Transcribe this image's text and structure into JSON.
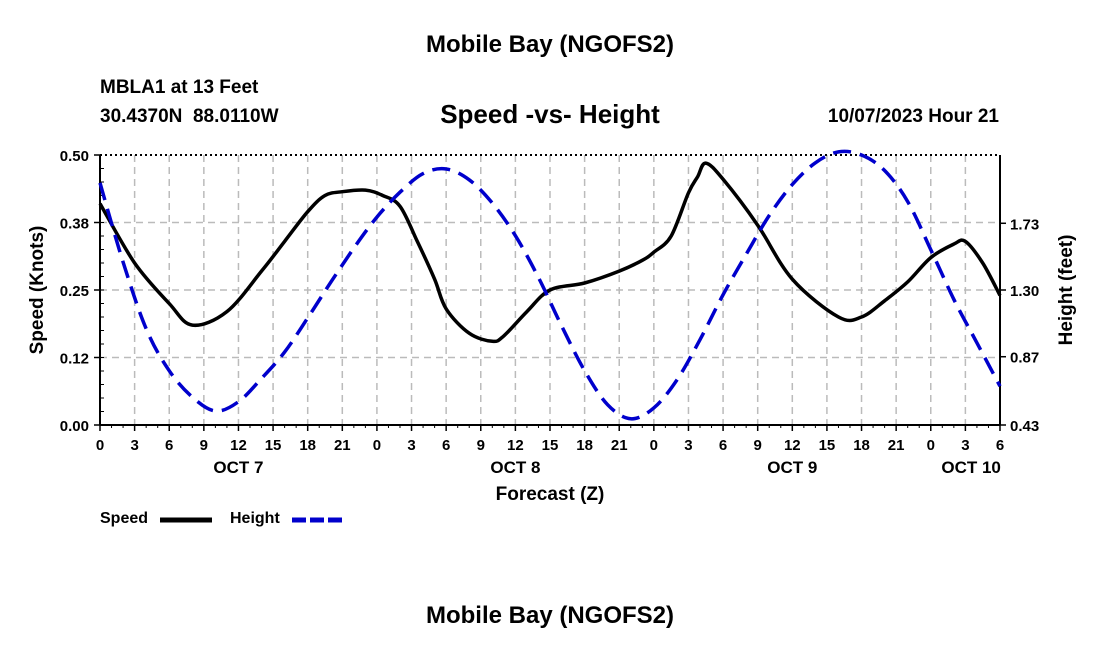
{
  "page_title": "Mobile Bay (NGOFS2)",
  "footer_title": "Mobile Bay (NGOFS2)",
  "station": {
    "name_line": "MBLA1 at 13 Feet",
    "coords_line": "30.4370N  88.0110W"
  },
  "timestamp": "10/07/2023 Hour 21",
  "chart_data": {
    "type": "line",
    "title": "Speed -vs- Height",
    "xlabel": "Forecast (Z)",
    "ylabel": "Speed (Knots)",
    "y2label": "Height (feet)",
    "x_range_hours": [
      0,
      78
    ],
    "x_ticks": [
      {
        "hour": 0,
        "label": "0"
      },
      {
        "hour": 3,
        "label": "3"
      },
      {
        "hour": 6,
        "label": "6"
      },
      {
        "hour": 9,
        "label": "9"
      },
      {
        "hour": 12,
        "label": "12"
      },
      {
        "hour": 15,
        "label": "15"
      },
      {
        "hour": 18,
        "label": "18"
      },
      {
        "hour": 21,
        "label": "21"
      },
      {
        "hour": 24,
        "label": "0"
      },
      {
        "hour": 27,
        "label": "3"
      },
      {
        "hour": 30,
        "label": "6"
      },
      {
        "hour": 33,
        "label": "9"
      },
      {
        "hour": 36,
        "label": "12"
      },
      {
        "hour": 39,
        "label": "15"
      },
      {
        "hour": 42,
        "label": "18"
      },
      {
        "hour": 45,
        "label": "21"
      },
      {
        "hour": 48,
        "label": "0"
      },
      {
        "hour": 51,
        "label": "3"
      },
      {
        "hour": 54,
        "label": "6"
      },
      {
        "hour": 57,
        "label": "9"
      },
      {
        "hour": 60,
        "label": "12"
      },
      {
        "hour": 63,
        "label": "15"
      },
      {
        "hour": 66,
        "label": "18"
      },
      {
        "hour": 69,
        "label": "21"
      },
      {
        "hour": 72,
        "label": "0"
      },
      {
        "hour": 75,
        "label": "3"
      },
      {
        "hour": 78,
        "label": "6"
      }
    ],
    "day_labels": [
      {
        "hour": 12,
        "label": "OCT 7"
      },
      {
        "hour": 36,
        "label": "OCT 8"
      },
      {
        "hour": 60,
        "label": "OCT 9"
      },
      {
        "hour": 75.5,
        "label": "OCT 10"
      }
    ],
    "y_left": {
      "range": [
        0,
        0.5
      ],
      "ticks": [
        0,
        0.125,
        0.25,
        0.375,
        0.5
      ],
      "labels": [
        "0.00",
        "0.12",
        "0.25",
        "0.38",
        "0.50"
      ]
    },
    "y_right": {
      "range": [
        0.43,
        2.17
      ],
      "ticks": [
        0.43,
        0.87,
        1.3,
        1.73
      ],
      "labels": [
        "0.43",
        "0.87",
        "1.30",
        "1.73"
      ]
    },
    "series": [
      {
        "name": "Speed",
        "axis": "left",
        "color": "#000000",
        "style": "solid",
        "x": [
          0,
          3,
          6,
          8,
          11,
          14,
          16,
          18,
          19.5,
          21,
          23,
          24.5,
          26,
          27.5,
          29,
          30,
          32,
          34,
          35,
          37,
          39,
          42,
          45,
          47,
          48,
          49.5,
          51,
          51.8,
          52.5,
          54,
          57,
          60,
          64,
          66,
          68,
          70,
          72,
          74,
          75,
          76.5,
          78
        ],
        "values": [
          0.41,
          0.3,
          0.225,
          0.185,
          0.21,
          0.285,
          0.34,
          0.395,
          0.425,
          0.432,
          0.435,
          0.425,
          0.405,
          0.34,
          0.27,
          0.215,
          0.17,
          0.155,
          0.165,
          0.21,
          0.25,
          0.263,
          0.285,
          0.305,
          0.32,
          0.35,
          0.43,
          0.46,
          0.485,
          0.455,
          0.37,
          0.27,
          0.2,
          0.2,
          0.23,
          0.265,
          0.31,
          0.335,
          0.34,
          0.3,
          0.24
        ]
      },
      {
        "name": "Height",
        "axis": "right",
        "color": "#0000cc",
        "style": "dashed",
        "x": [
          0,
          2,
          4,
          6,
          8,
          10,
          12,
          14,
          16,
          18,
          20,
          22,
          24,
          26,
          28,
          30,
          32,
          34,
          36,
          38,
          40,
          42,
          44,
          46,
          48,
          50,
          52,
          54,
          56,
          58,
          60,
          62,
          64,
          66,
          68,
          70,
          72,
          74,
          76,
          78
        ],
        "values": [
          1.99,
          1.48,
          1.05,
          0.78,
          0.61,
          0.52,
          0.58,
          0.73,
          0.9,
          1.12,
          1.35,
          1.57,
          1.77,
          1.93,
          2.05,
          2.08,
          2.01,
          1.86,
          1.65,
          1.38,
          1.07,
          0.78,
          0.56,
          0.47,
          0.54,
          0.72,
          0.98,
          1.27,
          1.53,
          1.78,
          1.98,
          2.12,
          2.19,
          2.17,
          2.07,
          1.87,
          1.56,
          1.24,
          0.96,
          0.68
        ]
      }
    ]
  },
  "legend": {
    "items": [
      {
        "label": "Speed",
        "color": "#000000",
        "style": "solid"
      },
      {
        "label": "Height",
        "color": "#0000cc",
        "style": "dashed"
      }
    ]
  }
}
